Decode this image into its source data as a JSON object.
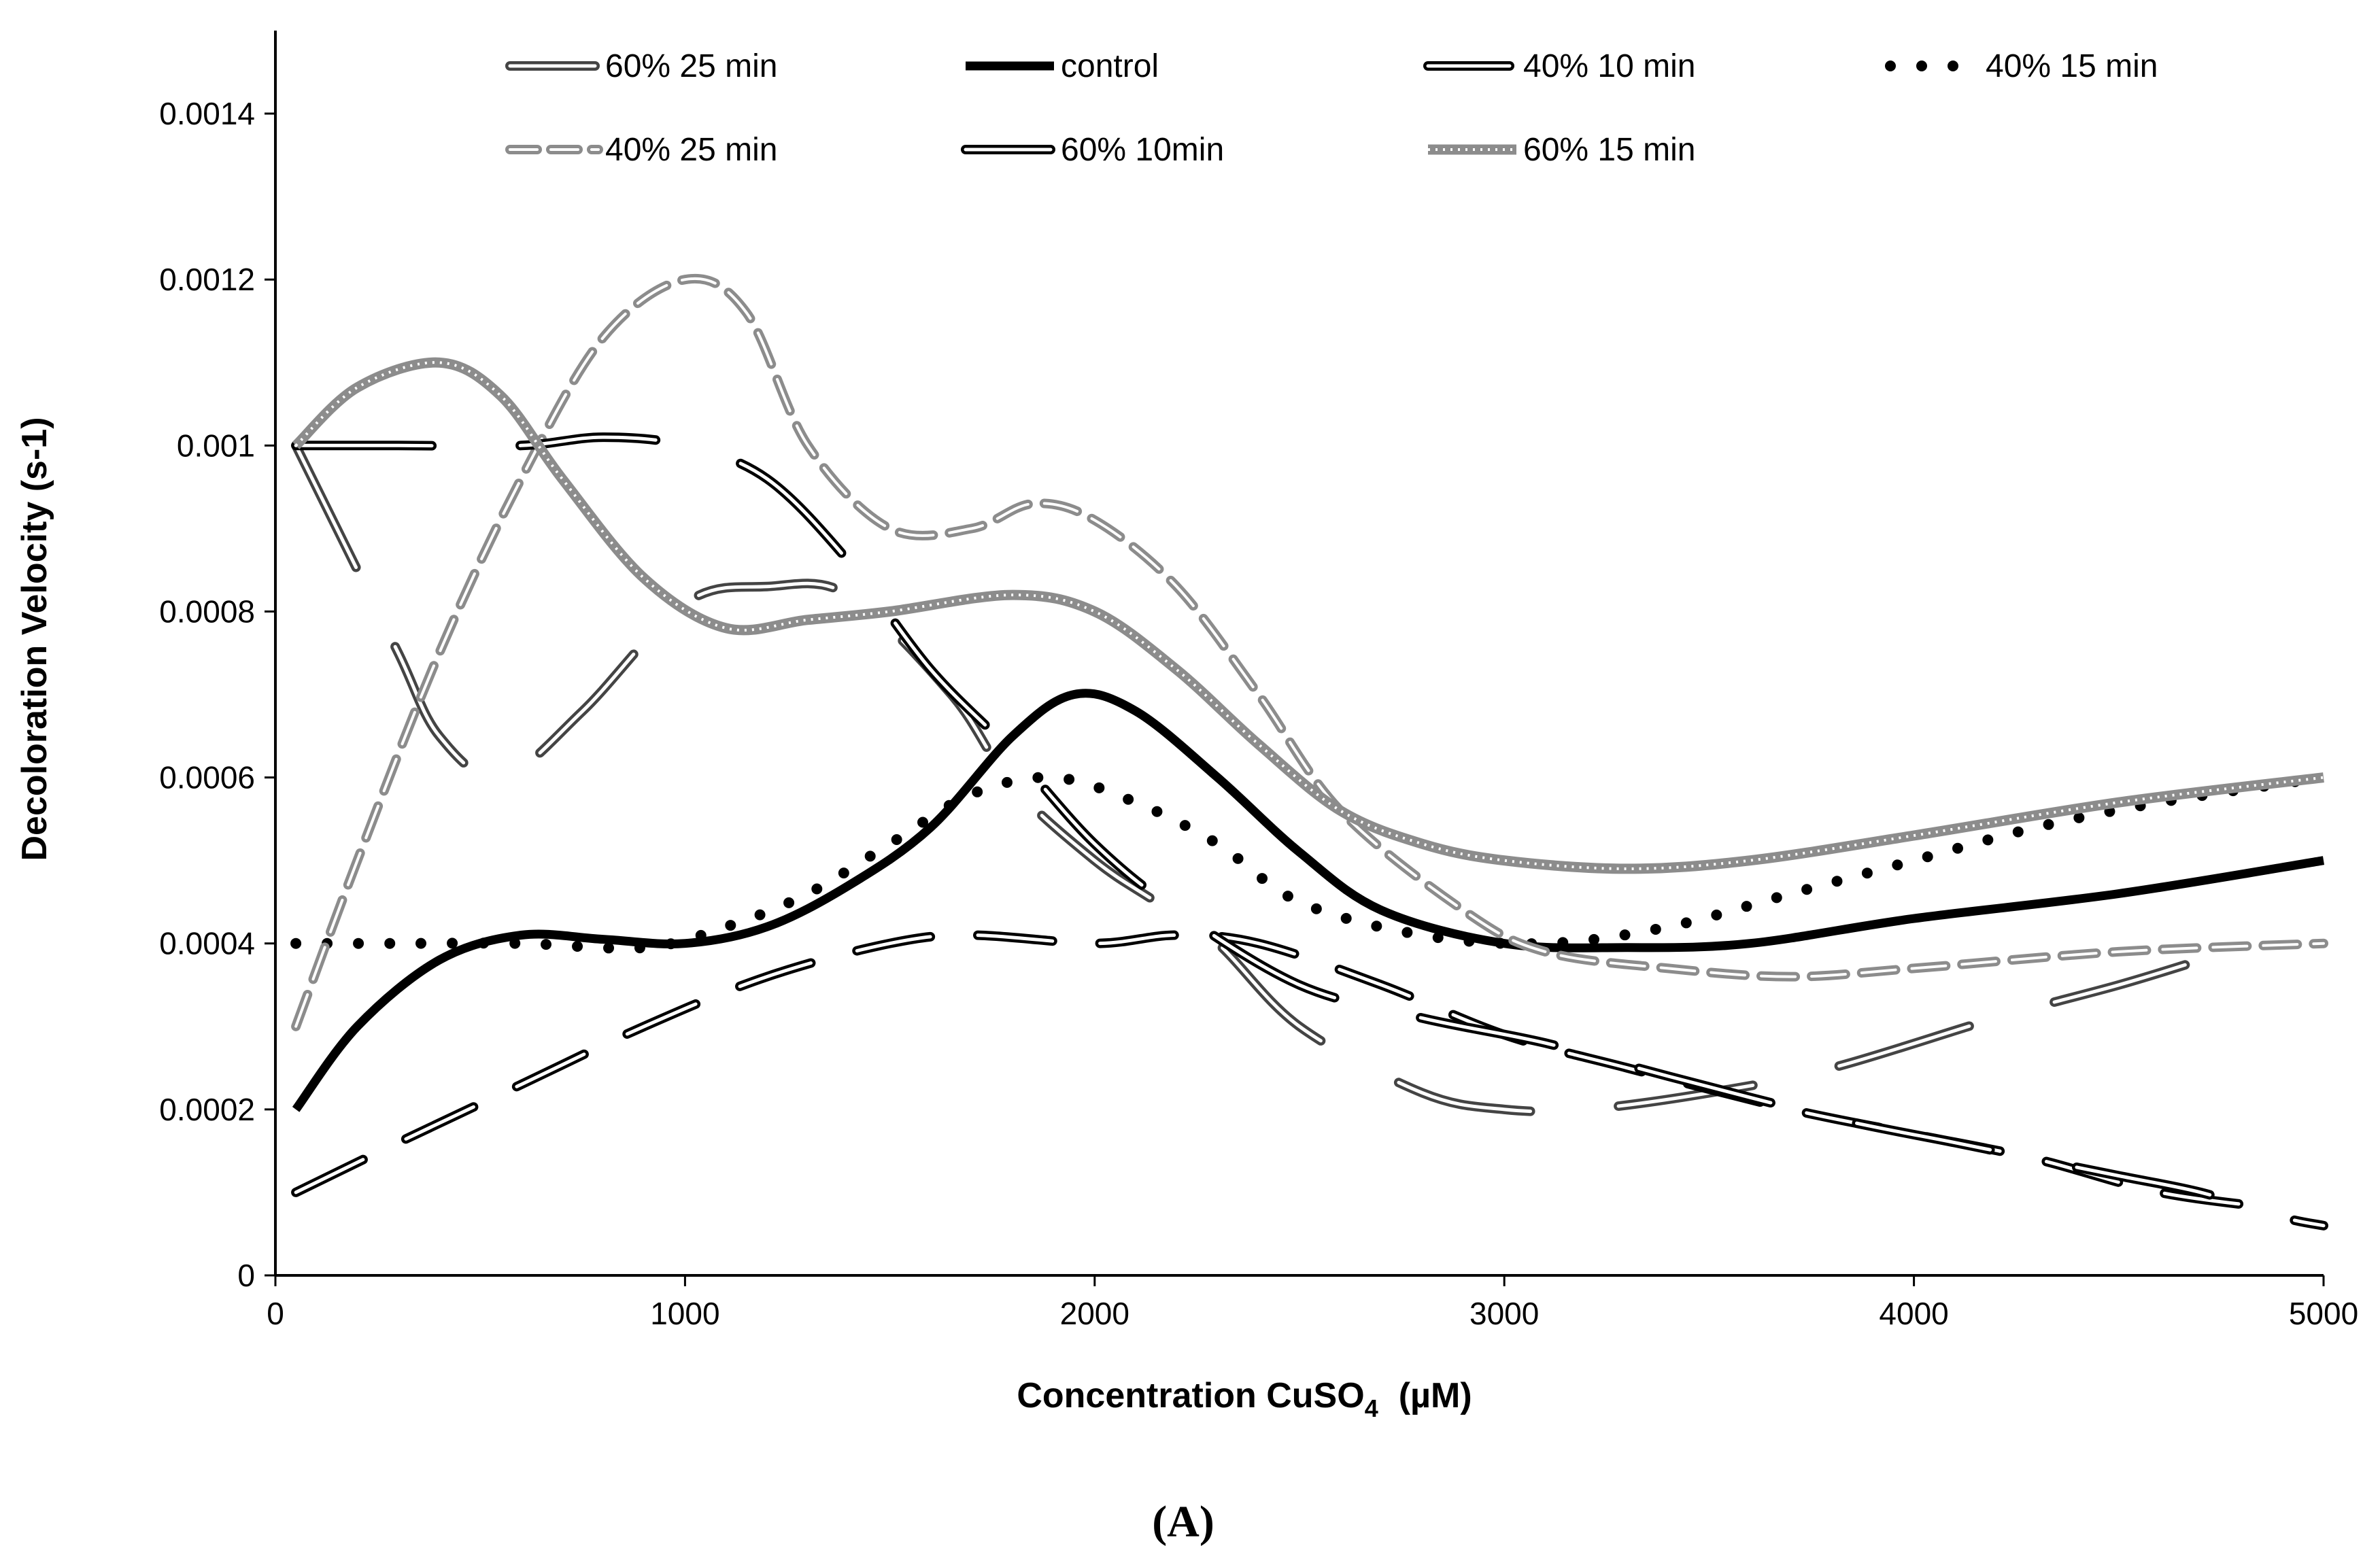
{
  "chart_data": {
    "type": "line",
    "title": "",
    "caption": "(A)",
    "xlabel": "Concentration CuSO",
    "xlabel_sub": "4",
    "xlabel_unit": "(µM)",
    "ylabel": "Decoloration Velocity (s-1)",
    "xlim": [
      0,
      5000
    ],
    "ylim": [
      0,
      0.0015
    ],
    "xticks": [
      0,
      1000,
      2000,
      3000,
      4000,
      5000
    ],
    "xtick_labels": [
      "0",
      "1000",
      "2000",
      "3000",
      "4000",
      "5000"
    ],
    "yticks": [
      0,
      0.0002,
      0.0004,
      0.0006,
      0.0008,
      0.001,
      0.0012,
      0.0014
    ],
    "ytick_labels": [
      "0",
      "0.0002",
      "0.0004",
      "0.0006",
      "0.0008",
      "0.001",
      "0.0012",
      "0.0014"
    ],
    "grid": false,
    "legend_position": "top",
    "series": [
      {
        "name": "60% 25 min",
        "style": "long-dash-outline",
        "color": "#444444",
        "x": [
          50,
          150,
          300,
          400,
          550,
          750,
          1000,
          1200,
          1400,
          1650,
          1800,
          2000,
          2150,
          2300,
          2500,
          2800,
          3000,
          3200,
          3500,
          3800,
          4200,
          4500,
          4700
        ],
        "y": [
          0.001,
          0.0009,
          0.00075,
          0.00065,
          0.0006,
          0.00068,
          0.00081,
          0.00083,
          0.00082,
          0.0007,
          0.00059,
          0.0005,
          0.00045,
          0.0004,
          0.0003,
          0.00022,
          0.0002,
          0.0002,
          0.00022,
          0.00025,
          0.00031,
          0.00035,
          0.00038
        ]
      },
      {
        "name": "control",
        "style": "solid-thick",
        "color": "#000000",
        "x": [
          50,
          200,
          400,
          600,
          800,
          1000,
          1200,
          1400,
          1600,
          1800,
          1950,
          2100,
          2300,
          2500,
          2700,
          3000,
          3300,
          3600,
          4000,
          4500,
          5000
        ],
        "y": [
          0.0002,
          0.0003,
          0.00038,
          0.00041,
          0.000405,
          0.0004,
          0.00042,
          0.00047,
          0.00054,
          0.00065,
          0.0007,
          0.00068,
          0.0006,
          0.00051,
          0.00044,
          0.0004,
          0.000395,
          0.0004,
          0.00043,
          0.00046,
          0.0005
        ]
      },
      {
        "name": "40% 10 min",
        "style": "dash-outline",
        "color": "#000000",
        "x": [
          50,
          300,
          600,
          900,
          1200,
          1500,
          1700,
          2000,
          2200,
          2400,
          2700,
          3000,
          3300,
          3700,
          4000,
          4300,
          4600,
          4900
        ],
        "y": [
          0.0001,
          0.00016,
          0.00023,
          0.0003,
          0.00036,
          0.0004,
          0.00041,
          0.0004,
          0.00041,
          0.0004,
          0.00035,
          0.00029,
          0.00025,
          0.0002,
          0.00017,
          0.00014,
          0.0001,
          8e-05
        ]
      },
      {
        "name": "40% 15 min",
        "style": "dotted-thick",
        "color": "#000000",
        "x": [
          50,
          300,
          600,
          900,
          1100,
          1300,
          1500,
          1700,
          1900,
          2100,
          2300,
          2500,
          2800,
          3100,
          3400,
          3700,
          4000,
          4300,
          4600,
          5000
        ],
        "y": [
          0.0004,
          0.0004,
          0.0004,
          0.000395,
          0.00042,
          0.00046,
          0.00052,
          0.00058,
          0.0006,
          0.00057,
          0.00052,
          0.00045,
          0.00041,
          0.0004,
          0.00042,
          0.00046,
          0.0005,
          0.00054,
          0.00057,
          0.0006
        ]
      },
      {
        "name": "40% 25 min",
        "style": "dash-gray",
        "color": "#8c8c8c",
        "x": [
          50,
          200,
          400,
          600,
          800,
          1000,
          1150,
          1300,
          1500,
          1700,
          1850,
          2000,
          2200,
          2400,
          2600,
          2900,
          3100,
          3400,
          3700,
          4000,
          4500,
          5000
        ],
        "y": [
          0.0003,
          0.0005,
          0.00075,
          0.00096,
          0.00113,
          0.0012,
          0.00116,
          0.001,
          0.0009,
          0.0009,
          0.00093,
          0.00091,
          0.00083,
          0.0007,
          0.00056,
          0.00044,
          0.00039,
          0.00037,
          0.00036,
          0.00037,
          0.00039,
          0.0004
        ]
      },
      {
        "name": "60% 10min",
        "style": "long-dash-outline",
        "color": "#000000",
        "x": [
          50,
          300,
          600,
          800,
          1000,
          1200,
          1400,
          1600,
          1800,
          2000,
          2200,
          2500,
          2800,
          3100,
          3400,
          3800,
          4100,
          4300,
          4500,
          4700,
          4900,
          5000
        ],
        "y": [
          0.001,
          0.001,
          0.001,
          0.00101,
          0.001,
          0.00096,
          0.00086,
          0.00073,
          0.00063,
          0.00052,
          0.00044,
          0.00035,
          0.00031,
          0.00028,
          0.00024,
          0.00019,
          0.00016,
          0.00014,
          0.00012,
          0.0001,
          7e-05,
          6e-05
        ]
      },
      {
        "name": "60% 15 min",
        "style": "dotted-gray-thick",
        "color": "#8c8c8c",
        "x": [
          50,
          200,
          400,
          550,
          700,
          900,
          1100,
          1300,
          1500,
          1800,
          2000,
          2200,
          2400,
          2600,
          2800,
          3000,
          3300,
          3600,
          4000,
          4500,
          5000
        ],
        "y": [
          0.001,
          0.00107,
          0.0011,
          0.00106,
          0.00096,
          0.00084,
          0.00078,
          0.00079,
          0.0008,
          0.00082,
          0.0008,
          0.00073,
          0.00064,
          0.00056,
          0.00052,
          0.0005,
          0.00049,
          0.0005,
          0.00053,
          0.00057,
          0.0006
        ]
      }
    ]
  }
}
